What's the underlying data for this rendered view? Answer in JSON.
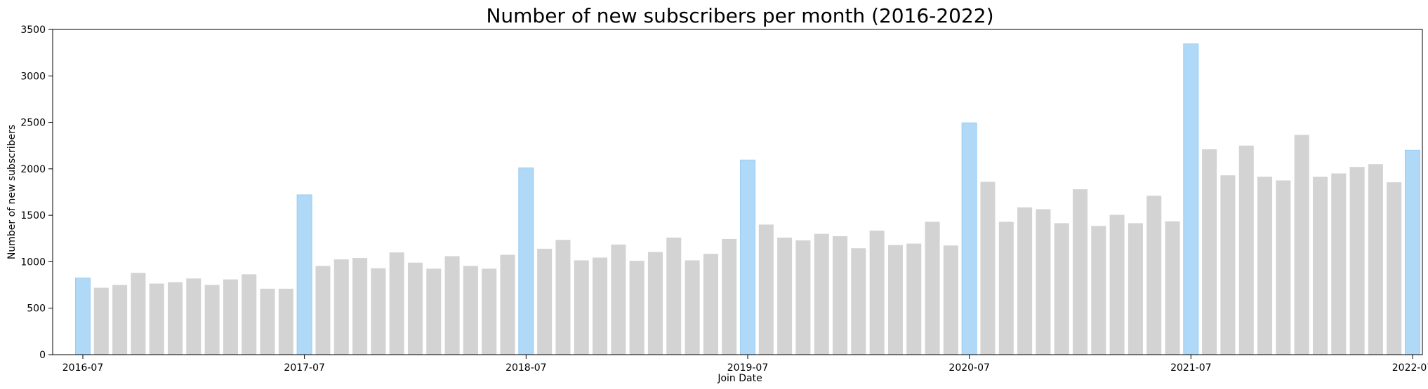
{
  "chart_data": {
    "type": "bar",
    "title": "Number of new subscribers per month (2016-2022)",
    "xlabel": "Join Date",
    "ylabel": "Number of new subscribers",
    "ylim": [
      0,
      3500
    ],
    "yticks": [
      0,
      500,
      1000,
      1500,
      2000,
      2500,
      3000,
      3500
    ],
    "xtick_labels": [
      "2016-07",
      "2017-07",
      "2018-07",
      "2019-07",
      "2020-07",
      "2021-07",
      "2022-07"
    ],
    "grid": false,
    "colors": {
      "bar": "#d3d3d3",
      "highlight": "#b0d8f7",
      "highlight_edge": "#9ccdf2"
    },
    "highlight_month": "07",
    "categories": [
      "2016-07",
      "2016-08",
      "2016-09",
      "2016-10",
      "2016-11",
      "2016-12",
      "2017-01",
      "2017-02",
      "2017-03",
      "2017-04",
      "2017-05",
      "2017-06",
      "2017-07",
      "2017-08",
      "2017-09",
      "2017-10",
      "2017-11",
      "2017-12",
      "2018-01",
      "2018-02",
      "2018-03",
      "2018-04",
      "2018-05",
      "2018-06",
      "2018-07",
      "2018-08",
      "2018-09",
      "2018-10",
      "2018-11",
      "2018-12",
      "2019-01",
      "2019-02",
      "2019-03",
      "2019-04",
      "2019-05",
      "2019-06",
      "2019-07",
      "2019-08",
      "2019-09",
      "2019-10",
      "2019-11",
      "2019-12",
      "2020-01",
      "2020-02",
      "2020-03",
      "2020-04",
      "2020-05",
      "2020-06",
      "2020-07",
      "2020-08",
      "2020-09",
      "2020-10",
      "2020-11",
      "2020-12",
      "2021-01",
      "2021-02",
      "2021-03",
      "2021-04",
      "2021-05",
      "2021-06",
      "2021-07",
      "2021-08",
      "2021-09",
      "2021-10",
      "2021-11",
      "2021-12",
      "2022-01",
      "2022-02",
      "2022-03",
      "2022-04",
      "2022-05",
      "2022-06",
      "2022-07"
    ],
    "values": [
      825,
      720,
      750,
      880,
      765,
      780,
      820,
      750,
      810,
      865,
      710,
      710,
      1720,
      955,
      1025,
      1040,
      930,
      1100,
      990,
      925,
      1060,
      955,
      925,
      1075,
      2010,
      1140,
      1235,
      1015,
      1045,
      1185,
      1010,
      1105,
      1260,
      1015,
      1085,
      1245,
      2095,
      1400,
      1260,
      1230,
      1300,
      1275,
      1145,
      1335,
      1180,
      1195,
      1430,
      1175,
      2495,
      1860,
      1430,
      1585,
      1565,
      1415,
      1780,
      1385,
      1505,
      1415,
      1710,
      1435,
      3345,
      2210,
      1930,
      2250,
      1915,
      1875,
      2365,
      1915,
      1950,
      2020,
      2050,
      1855,
      2200
    ]
  }
}
